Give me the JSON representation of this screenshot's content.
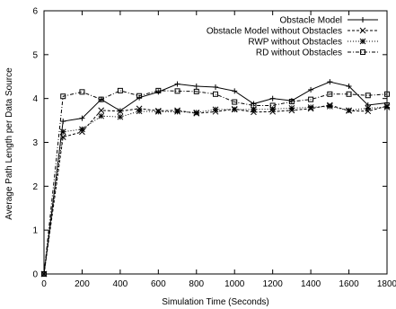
{
  "chart_data": {
    "type": "line",
    "title": "",
    "xlabel": "Simulation Time (Seconds)",
    "ylabel": "Average Path Length per Data Source",
    "xlim": [
      0,
      1800
    ],
    "ylim": [
      0,
      6
    ],
    "xticks": [
      0,
      200,
      400,
      600,
      800,
      1000,
      1200,
      1400,
      1600,
      1800
    ],
    "yticks": [
      0,
      1,
      2,
      3,
      4,
      5,
      6
    ],
    "grid": false,
    "legend_position": "top-right",
    "x": [
      0,
      100,
      200,
      300,
      400,
      500,
      600,
      700,
      800,
      900,
      1000,
      1100,
      1200,
      1300,
      1400,
      1500,
      1600,
      1700,
      1800
    ],
    "series": [
      {
        "name": "Obstacle Model",
        "marker": "plus",
        "dash": "solid",
        "values": [
          0,
          3.48,
          3.55,
          3.98,
          3.72,
          4.02,
          4.15,
          4.33,
          4.28,
          4.26,
          4.17,
          3.88,
          4.0,
          3.95,
          4.2,
          4.38,
          4.28,
          3.85,
          3.9
        ]
      },
      {
        "name": "Obstacle Model without Obstacles",
        "marker": "x",
        "dash": "dashed",
        "values": [
          0,
          3.12,
          3.24,
          3.73,
          3.71,
          3.77,
          3.72,
          3.73,
          3.66,
          3.7,
          3.76,
          3.69,
          3.7,
          3.73,
          3.77,
          3.85,
          3.72,
          3.71,
          3.83
        ]
      },
      {
        "name": "RWP without Obstacles",
        "marker": "asterisk",
        "dash": "dotted",
        "values": [
          0,
          3.24,
          3.3,
          3.6,
          3.58,
          3.71,
          3.7,
          3.7,
          3.68,
          3.75,
          3.75,
          3.75,
          3.76,
          3.78,
          3.8,
          3.82,
          3.73,
          3.78,
          3.8
        ]
      },
      {
        "name": "RD without Obstacles",
        "marker": "square",
        "dash": "dashdot",
        "values": [
          0,
          4.05,
          4.15,
          3.98,
          4.18,
          4.06,
          4.18,
          4.17,
          4.16,
          4.1,
          3.92,
          3.84,
          3.84,
          3.93,
          3.98,
          4.1,
          4.1,
          4.07,
          4.1
        ]
      }
    ]
  }
}
